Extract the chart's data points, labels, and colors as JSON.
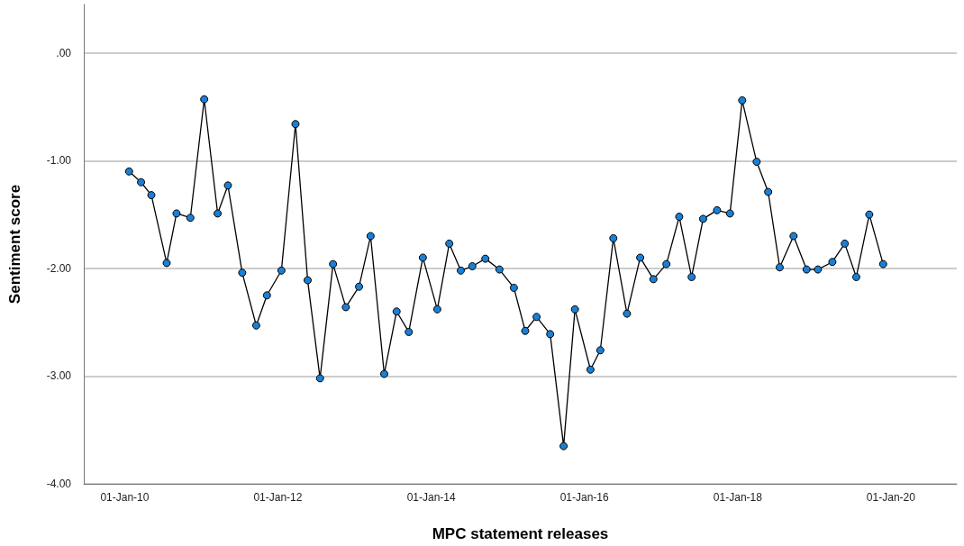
{
  "chart_data": {
    "type": "line",
    "xlabel": "MPC statement releases",
    "ylabel": "Sentiment score",
    "x": [
      "2010-01-22",
      "2010-03-20",
      "2010-05-08",
      "2010-07-20",
      "2010-09-05",
      "2010-11-10",
      "2011-01-15",
      "2011-03-20",
      "2011-05-08",
      "2011-07-15",
      "2011-09-20",
      "2011-11-10",
      "2012-01-18",
      "2012-03-25",
      "2012-05-22",
      "2012-07-20",
      "2012-09-20",
      "2012-11-20",
      "2013-01-22",
      "2013-03-18",
      "2013-05-22",
      "2013-07-20",
      "2013-09-16",
      "2013-11-22",
      "2014-01-30",
      "2014-03-28",
      "2014-05-22",
      "2014-07-16",
      "2014-09-16",
      "2014-11-22",
      "2015-01-30",
      "2015-03-25",
      "2015-05-18",
      "2015-07-22",
      "2015-09-24",
      "2015-11-17",
      "2016-01-30",
      "2016-03-17",
      "2016-05-18",
      "2016-07-22",
      "2016-09-23",
      "2016-11-25",
      "2017-01-26",
      "2017-03-28",
      "2017-05-26",
      "2017-07-20",
      "2017-09-24",
      "2017-11-25",
      "2018-01-22",
      "2018-04-01",
      "2018-05-26",
      "2018-07-20",
      "2018-09-24",
      "2018-11-25",
      "2019-01-18",
      "2019-03-28",
      "2019-05-26",
      "2019-07-20",
      "2019-09-20",
      "2019-11-25"
    ],
    "series": [
      {
        "color": "#1b7fd4",
        "values": [
          -1.1,
          -1.2,
          -1.32,
          -1.95,
          -1.49,
          -1.53,
          -0.43,
          -1.49,
          -1.23,
          -2.04,
          -2.53,
          -2.25,
          -2.02,
          -0.66,
          -2.11,
          -3.02,
          -1.96,
          -2.36,
          -2.17,
          -1.7,
          -2.98,
          -2.4,
          -2.59,
          -1.9,
          -2.38,
          -1.77,
          -2.02,
          -1.98,
          -1.91,
          -2.01,
          -2.18,
          -2.58,
          -2.45,
          -2.61,
          -3.65,
          -2.38,
          -2.94,
          -2.76,
          -1.72,
          -2.42,
          -1.9,
          -2.1,
          -1.96,
          -1.52,
          -2.08,
          -1.54,
          -1.46,
          -1.49,
          -0.44,
          -1.01,
          -1.29,
          -1.99,
          -1.7,
          -2.01,
          -2.01,
          -1.94,
          -1.77,
          -2.08,
          -1.5,
          -1.96
        ]
      }
    ],
    "xlim": [
      "2009-06-20",
      "2020-11-10"
    ],
    "xticks": [
      {
        "value": "2010-01-01",
        "label": "01-Jan-10"
      },
      {
        "value": "2012-01-01",
        "label": "01-Jan-12"
      },
      {
        "value": "2014-01-01",
        "label": "01-Jan-14"
      },
      {
        "value": "2016-01-01",
        "label": "01-Jan-16"
      },
      {
        "value": "2018-01-01",
        "label": "01-Jan-18"
      },
      {
        "value": "2020-01-01",
        "label": "01-Jan-20"
      }
    ],
    "ylim": [
      -4,
      0.45
    ],
    "yticks": [
      {
        "value": -4,
        "label": "-4.00"
      },
      {
        "value": -3,
        "label": "-3.00"
      },
      {
        "value": -2,
        "label": "-2.00"
      },
      {
        "value": -1,
        "label": "-1.00"
      },
      {
        "value": 0,
        "label": ".00"
      }
    ],
    "grid": "y",
    "marker": "circle",
    "line_style": "solid"
  }
}
